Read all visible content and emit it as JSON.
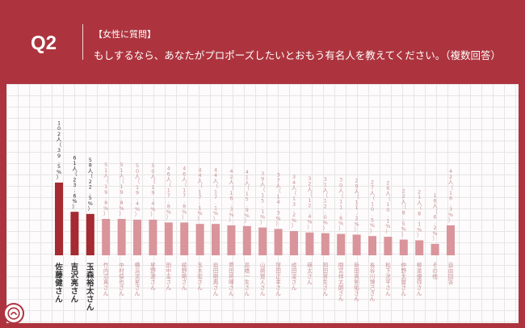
{
  "header": {
    "q_label": "Q2",
    "tag": "【女性に質問】",
    "question": "もしするなら、あなたがプロポーズしたいとおもう有名人を教えてください。（複数回答）"
  },
  "colors": {
    "top3": "#a52a32",
    "other": "#d9959b",
    "label_other": "#c98f95",
    "label_top3": "#333333"
  },
  "chart_data": {
    "type": "bar",
    "title": "",
    "xlabel": "",
    "ylabel": "",
    "categories": [
      "佐藤健さん",
      "吉沢亮さん",
      "玉森裕太さん",
      "竹内涼真さん",
      "中村倫也さん",
      "横浜流星さん",
      "星野源さん",
      "田中圭さん",
      "綾野剛さん",
      "玉木宏さん",
      "岩田剛典さん",
      "菅田将暉さん",
      "高橋一生さん",
      "山崎賢人さん",
      "窪田正孝さん",
      "成田凌さん",
      "瑛太さん",
      "岡田将生さん",
      "間宮祥太朗さん",
      "新田真剣佑さん",
      "長谷川博己さん",
      "松下洸平さん",
      "仲野太賀さん",
      "柳楽優弥さん",
      "その他",
      "自由回答"
    ],
    "series": [
      {
        "values": [
          102,
          61,
          58,
          51,
          51,
          50,
          50,
          46,
          46,
          44,
          44,
          42,
          41,
          39,
          37,
          34,
          32,
          31,
          30,
          29,
          27,
          26,
          22,
          21,
          16,
          42
        ],
        "labels": [
          "102人（39.5%）",
          "61人（23.6%）",
          "58人（22.5%）",
          "51人（19.8%）",
          "51人（19.8%）",
          "50人（19.4%）",
          "50人（19.4%）",
          "46人（17.8%）",
          "46人（17.8%）",
          "44人（17.1%）",
          "44人（17.1%）",
          "42人（16.3%）",
          "41人（15.9%）",
          "39人（15.1%）",
          "37人（14.3%）",
          "34人（13.2%）",
          "32人（12.4%）",
          "31人（12.0%）",
          "30人（11.6%）",
          "29人（11.2%）",
          "27人（10.5%）",
          "26人（10.1%）",
          "22人（8.5%）",
          "21人（8.1%）",
          "16人（6.2%）",
          "42人（16.3%）"
        ]
      }
    ],
    "highlight_count": 3,
    "grid": true
  }
}
